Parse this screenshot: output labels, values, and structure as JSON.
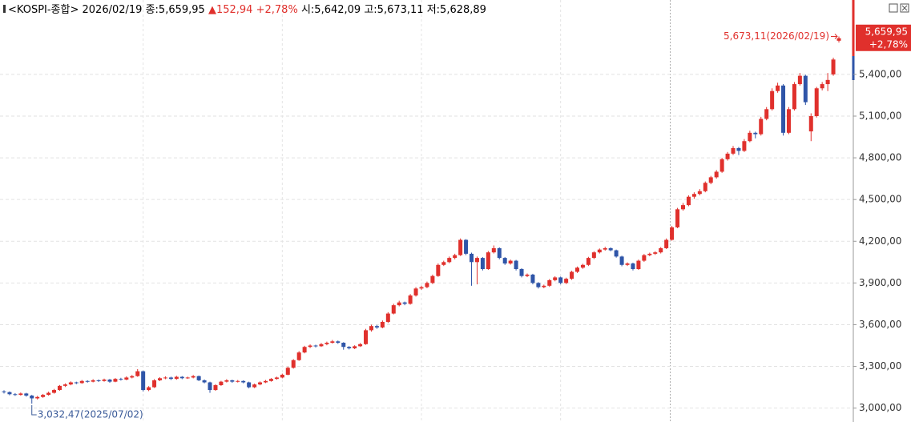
{
  "chart_data": {
    "type": "candlestick",
    "header": {
      "name": "<KOSPI-종합>",
      "date": "2026/02/19",
      "close": "종:5,659,95",
      "change": "▲152,94",
      "change_pct": "+2,78%",
      "open": "시:5,642,09",
      "high": "고:5,673,11",
      "low": "저:5,628,89"
    },
    "price_tag": {
      "price": "5,659,95",
      "pct": "+2,78%"
    },
    "annotations": [
      {
        "text": "5,673,11(2026/02/19)",
        "color": "#e0302c"
      },
      {
        "text": "3,032,47(2025/07/02)",
        "color": "#3b5b99"
      }
    ],
    "up_color": "#e0302c",
    "down_color": "#2f55a8",
    "grid": true,
    "ylim": [
      2900,
      5935
    ],
    "yticks": [
      {
        "value": 3000,
        "label": "3,000,00"
      },
      {
        "value": 3300,
        "label": "3,300,00"
      },
      {
        "value": 3600,
        "label": "3,600,00"
      },
      {
        "value": 3900,
        "label": "3,900,00"
      },
      {
        "value": 4200,
        "label": "4,200,00"
      },
      {
        "value": 4500,
        "label": "4,500,00"
      },
      {
        "value": 4800,
        "label": "4,800,00"
      },
      {
        "value": 5100,
        "label": "5,100,00"
      },
      {
        "value": 5400,
        "label": "5,400,00"
      }
    ],
    "values": [
      [
        3120,
        3128,
        3105,
        3115
      ],
      [
        3115,
        3120,
        3092,
        3100
      ],
      [
        3100,
        3108,
        3088,
        3095
      ],
      [
        3095,
        3112,
        3090,
        3105
      ],
      [
        3105,
        3110,
        3082,
        3090
      ],
      [
        3090,
        3095,
        3032.47,
        3070
      ],
      [
        3070,
        3088,
        3062,
        3080
      ],
      [
        3080,
        3102,
        3074,
        3095
      ],
      [
        3095,
        3118,
        3090,
        3110
      ],
      [
        3110,
        3138,
        3104,
        3130
      ],
      [
        3130,
        3166,
        3125,
        3160
      ],
      [
        3160,
        3178,
        3152,
        3170
      ],
      [
        3170,
        3192,
        3164,
        3185
      ],
      [
        3185,
        3190,
        3172,
        3180
      ],
      [
        3180,
        3202,
        3175,
        3195
      ],
      [
        3195,
        3200,
        3183,
        3190
      ],
      [
        3190,
        3208,
        3185,
        3200
      ],
      [
        3200,
        3206,
        3188,
        3195
      ],
      [
        3195,
        3212,
        3190,
        3205
      ],
      [
        3205,
        3210,
        3182,
        3190
      ],
      [
        3190,
        3216,
        3186,
        3210
      ],
      [
        3210,
        3218,
        3198,
        3205
      ],
      [
        3205,
        3228,
        3200,
        3220
      ],
      [
        3220,
        3238,
        3214,
        3230
      ],
      [
        3230,
        3280,
        3225,
        3265
      ],
      [
        3265,
        3270,
        3120,
        3130
      ],
      [
        3130,
        3158,
        3122,
        3150
      ],
      [
        3150,
        3208,
        3145,
        3200
      ],
      [
        3200,
        3222,
        3194,
        3215
      ],
      [
        3215,
        3228,
        3208,
        3220
      ],
      [
        3220,
        3226,
        3202,
        3210
      ],
      [
        3210,
        3232,
        3204,
        3225
      ],
      [
        3225,
        3230,
        3208,
        3215
      ],
      [
        3215,
        3226,
        3210,
        3220
      ],
      [
        3220,
        3238,
        3214,
        3230
      ],
      [
        3230,
        3234,
        3194,
        3200
      ],
      [
        3200,
        3206,
        3178,
        3185
      ],
      [
        3185,
        3190,
        3110,
        3130
      ],
      [
        3130,
        3172,
        3124,
        3165
      ],
      [
        3165,
        3196,
        3160,
        3190
      ],
      [
        3190,
        3208,
        3184,
        3200
      ],
      [
        3200,
        3204,
        3182,
        3190
      ],
      [
        3190,
        3202,
        3184,
        3195
      ],
      [
        3195,
        3200,
        3178,
        3185
      ],
      [
        3185,
        3190,
        3142,
        3150
      ],
      [
        3150,
        3176,
        3144,
        3170
      ],
      [
        3170,
        3192,
        3164,
        3185
      ],
      [
        3185,
        3202,
        3180,
        3195
      ],
      [
        3195,
        3216,
        3190,
        3210
      ],
      [
        3210,
        3226,
        3204,
        3220
      ],
      [
        3220,
        3248,
        3214,
        3240
      ],
      [
        3240,
        3298,
        3236,
        3290
      ],
      [
        3290,
        3352,
        3284,
        3345
      ],
      [
        3345,
        3410,
        3340,
        3400
      ],
      [
        3400,
        3448,
        3394,
        3440
      ],
      [
        3440,
        3458,
        3432,
        3450
      ],
      [
        3450,
        3456,
        3436,
        3445
      ],
      [
        3445,
        3468,
        3440,
        3460
      ],
      [
        3460,
        3478,
        3452,
        3470
      ],
      [
        3470,
        3490,
        3464,
        3480
      ],
      [
        3480,
        3486,
        3462,
        3470
      ],
      [
        3470,
        3474,
        3420,
        3440
      ],
      [
        3440,
        3446,
        3422,
        3430
      ],
      [
        3430,
        3452,
        3424,
        3445
      ],
      [
        3445,
        3468,
        3440,
        3460
      ],
      [
        3460,
        3570,
        3455,
        3560
      ],
      [
        3560,
        3600,
        3550,
        3590
      ],
      [
        3590,
        3598,
        3570,
        3580
      ],
      [
        3580,
        3630,
        3574,
        3620
      ],
      [
        3620,
        3690,
        3612,
        3680
      ],
      [
        3680,
        3750,
        3674,
        3740
      ],
      [
        3740,
        3772,
        3732,
        3760
      ],
      [
        3760,
        3766,
        3740,
        3750
      ],
      [
        3750,
        3820,
        3744,
        3810
      ],
      [
        3810,
        3870,
        3802,
        3860
      ],
      [
        3860,
        3880,
        3850,
        3870
      ],
      [
        3870,
        3910,
        3862,
        3900
      ],
      [
        3900,
        3960,
        3892,
        3950
      ],
      [
        3950,
        4040,
        3944,
        4030
      ],
      [
        4030,
        4060,
        4022,
        4050
      ],
      [
        4050,
        4090,
        4042,
        4080
      ],
      [
        4080,
        4110,
        4070,
        4100
      ],
      [
        4100,
        4220,
        4094,
        4210
      ],
      [
        4210,
        4215,
        4100,
        4110
      ],
      [
        4110,
        4118,
        3880,
        4050
      ],
      [
        4050,
        4090,
        3890,
        4080
      ],
      [
        4080,
        4086,
        3990,
        4000
      ],
      [
        4000,
        4130,
        3994,
        4120
      ],
      [
        4120,
        4170,
        4112,
        4150
      ],
      [
        4150,
        4156,
        4070,
        4080
      ],
      [
        4080,
        4086,
        4030,
        4040
      ],
      [
        4040,
        4068,
        4032,
        4060
      ],
      [
        4060,
        4066,
        3990,
        4000
      ],
      [
        4000,
        4006,
        3940,
        3950
      ],
      [
        3950,
        3968,
        3942,
        3960
      ],
      [
        3960,
        3966,
        3890,
        3900
      ],
      [
        3900,
        3906,
        3860,
        3870
      ],
      [
        3870,
        3888,
        3862,
        3880
      ],
      [
        3880,
        3928,
        3872,
        3920
      ],
      [
        3920,
        3948,
        3912,
        3940
      ],
      [
        3940,
        3946,
        3890,
        3900
      ],
      [
        3900,
        3938,
        3892,
        3930
      ],
      [
        3930,
        3988,
        3922,
        3980
      ],
      [
        3980,
        4018,
        3972,
        4010
      ],
      [
        4010,
        4038,
        4002,
        4030
      ],
      [
        4030,
        4088,
        4022,
        4080
      ],
      [
        4080,
        4128,
        4072,
        4120
      ],
      [
        4120,
        4148,
        4112,
        4140
      ],
      [
        4140,
        4160,
        4132,
        4150
      ],
      [
        4150,
        4156,
        4128,
        4135
      ],
      [
        4135,
        4140,
        4082,
        4090
      ],
      [
        4090,
        4096,
        4020,
        4030
      ],
      [
        4030,
        4048,
        4022,
        4040
      ],
      [
        4040,
        4046,
        3990,
        4000
      ],
      [
        4000,
        4068,
        3994,
        4060
      ],
      [
        4060,
        4108,
        4052,
        4100
      ],
      [
        4100,
        4118,
        4092,
        4110
      ],
      [
        4110,
        4128,
        4102,
        4120
      ],
      [
        4120,
        4158,
        4112,
        4150
      ],
      [
        4150,
        4220,
        4144,
        4210
      ],
      [
        4210,
        4310,
        4204,
        4300
      ],
      [
        4300,
        4440,
        4294,
        4430
      ],
      [
        4430,
        4475,
        4420,
        4460
      ],
      [
        4460,
        4530,
        4452,
        4520
      ],
      [
        4520,
        4552,
        4505,
        4540
      ],
      [
        4540,
        4575,
        4530,
        4560
      ],
      [
        4560,
        4630,
        4552,
        4620
      ],
      [
        4620,
        4670,
        4610,
        4660
      ],
      [
        4660,
        4712,
        4650,
        4700
      ],
      [
        4700,
        4800,
        4692,
        4790
      ],
      [
        4790,
        4842,
        4780,
        4830
      ],
      [
        4830,
        4885,
        4820,
        4870
      ],
      [
        4870,
        4878,
        4820,
        4850
      ],
      [
        4850,
        4935,
        4842,
        4920
      ],
      [
        4920,
        4995,
        4912,
        4980
      ],
      [
        4980,
        4988,
        4940,
        4970
      ],
      [
        4970,
        5095,
        4960,
        5080
      ],
      [
        5080,
        5165,
        5070,
        5150
      ],
      [
        5150,
        5300,
        5140,
        5280
      ],
      [
        5280,
        5340,
        5268,
        5320
      ],
      [
        5320,
        5330,
        4960,
        4980
      ],
      [
        4980,
        5165,
        4970,
        5150
      ],
      [
        5150,
        5345,
        5140,
        5330
      ],
      [
        5330,
        5410,
        5320,
        5390
      ],
      [
        5390,
        5398,
        5180,
        5200
      ],
      [
        4990,
        5120,
        4920,
        5100
      ],
      [
        5100,
        5310,
        5090,
        5300
      ],
      [
        5300,
        5345,
        5285,
        5330
      ],
      [
        5330,
        5410,
        5280,
        5360
      ],
      [
        5400,
        5520,
        5390,
        5507.01
      ],
      [
        5642.09,
        5673.11,
        5628.89,
        5659.95
      ]
    ]
  }
}
